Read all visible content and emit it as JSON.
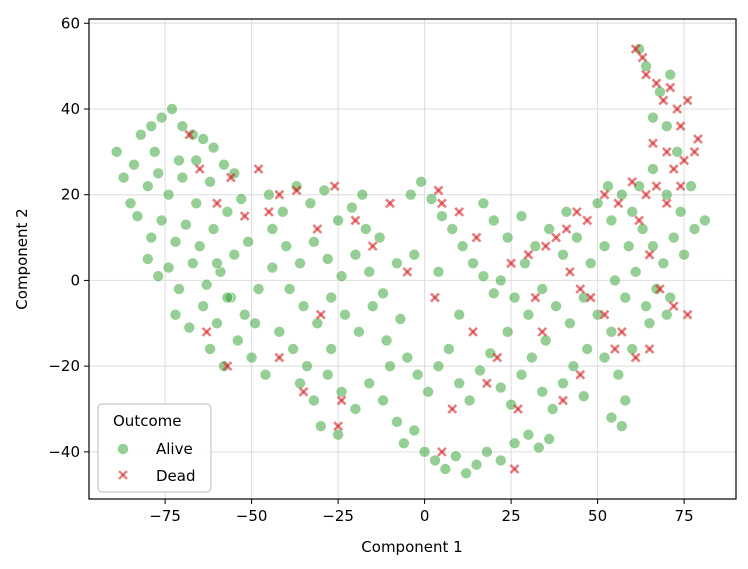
{
  "chart_data": {
    "type": "scatter",
    "title": "",
    "xlabel": "Component 1",
    "ylabel": "Component 2",
    "xlim": [
      -97,
      90
    ],
    "ylim": [
      -51,
      61
    ],
    "xticks": [
      "−75",
      "−50",
      "−25",
      "0",
      "25",
      "50",
      "75"
    ],
    "xtick_values": [
      -75,
      -50,
      -25,
      0,
      25,
      50,
      75
    ],
    "yticks": [
      "−40",
      "−20",
      "0",
      "20",
      "40",
      "60"
    ],
    "ytick_values": [
      -40,
      -20,
      0,
      20,
      40,
      60
    ],
    "grid": true,
    "legend": {
      "title": "Outcome",
      "placement": "lower-left",
      "entries": [
        {
          "label": "Alive",
          "marker": "circle",
          "color": "#2ca02c"
        },
        {
          "label": "Dead",
          "marker": "x",
          "color": "#d62728"
        }
      ]
    },
    "series": [
      {
        "name": "Alive",
        "color": "#2ca02c",
        "marker": "circle",
        "points": [
          [
            -89,
            30
          ],
          [
            -82,
            34
          ],
          [
            -79,
            36
          ],
          [
            -76,
            38
          ],
          [
            -73,
            40
          ],
          [
            -70,
            36
          ],
          [
            -67,
            34
          ],
          [
            -64,
            33
          ],
          [
            -61,
            31
          ],
          [
            -84,
            27
          ],
          [
            -80,
            22
          ],
          [
            -77,
            25
          ],
          [
            -74,
            20
          ],
          [
            -70,
            24
          ],
          [
            -66,
            28
          ],
          [
            -62,
            23
          ],
          [
            -58,
            27
          ],
          [
            -55,
            25
          ],
          [
            -83,
            15
          ],
          [
            -79,
            10
          ],
          [
            -76,
            14
          ],
          [
            -72,
            9
          ],
          [
            -69,
            13
          ],
          [
            -65,
            8
          ],
          [
            -61,
            12
          ],
          [
            -57,
            16
          ],
          [
            -53,
            19
          ],
          [
            -80,
            5
          ],
          [
            -77,
            1
          ],
          [
            -74,
            3
          ],
          [
            -71,
            -2
          ],
          [
            -67,
            4
          ],
          [
            -63,
            -1
          ],
          [
            -59,
            2
          ],
          [
            -55,
            6
          ],
          [
            -51,
            9
          ],
          [
            -72,
            -8
          ],
          [
            -68,
            -11
          ],
          [
            -64,
            -6
          ],
          [
            -60,
            -10
          ],
          [
            -56,
            -4
          ],
          [
            -52,
            -8
          ],
          [
            -48,
            -2
          ],
          [
            -44,
            3
          ],
          [
            -62,
            -16
          ],
          [
            -58,
            -20
          ],
          [
            -54,
            -14
          ],
          [
            -50,
            -18
          ],
          [
            -46,
            -22
          ],
          [
            -42,
            -12
          ],
          [
            -38,
            -16
          ],
          [
            -34,
            -20
          ],
          [
            -45,
            20
          ],
          [
            -41,
            16
          ],
          [
            -37,
            22
          ],
          [
            -33,
            18
          ],
          [
            -29,
            21
          ],
          [
            -25,
            14
          ],
          [
            -21,
            17
          ],
          [
            -17,
            12
          ],
          [
            -13,
            10
          ],
          [
            -40,
            8
          ],
          [
            -36,
            4
          ],
          [
            -32,
            9
          ],
          [
            -28,
            5
          ],
          [
            -24,
            1
          ],
          [
            -20,
            6
          ],
          [
            -16,
            2
          ],
          [
            -12,
            -3
          ],
          [
            -8,
            4
          ],
          [
            -35,
            -6
          ],
          [
            -31,
            -10
          ],
          [
            -27,
            -4
          ],
          [
            -23,
            -8
          ],
          [
            -19,
            -12
          ],
          [
            -15,
            -6
          ],
          [
            -11,
            -14
          ],
          [
            -7,
            -9
          ],
          [
            -36,
            -24
          ],
          [
            -32,
            -28
          ],
          [
            -28,
            -22
          ],
          [
            -24,
            -26
          ],
          [
            -20,
            -30
          ],
          [
            -16,
            -24
          ],
          [
            -12,
            -28
          ],
          [
            -8,
            -33
          ],
          [
            -30,
            -34
          ],
          [
            -25,
            -36
          ],
          [
            -6,
            -38
          ],
          [
            -3,
            -35
          ],
          [
            0,
            -40
          ],
          [
            3,
            -42
          ],
          [
            6,
            -44
          ],
          [
            9,
            -41
          ],
          [
            12,
            -45
          ],
          [
            15,
            -43
          ],
          [
            18,
            -40
          ],
          [
            22,
            -42
          ],
          [
            26,
            -38
          ],
          [
            30,
            -36
          ],
          [
            33,
            -39
          ],
          [
            36,
            -37
          ],
          [
            -4,
            20
          ],
          [
            -1,
            23
          ],
          [
            2,
            19
          ],
          [
            5,
            15
          ],
          [
            8,
            12
          ],
          [
            11,
            8
          ],
          [
            14,
            4
          ],
          [
            17,
            1
          ],
          [
            20,
            -3
          ],
          [
            -5,
            -18
          ],
          [
            -2,
            -22
          ],
          [
            1,
            -26
          ],
          [
            4,
            -20
          ],
          [
            7,
            -16
          ],
          [
            10,
            -24
          ],
          [
            13,
            -28
          ],
          [
            16,
            -21
          ],
          [
            19,
            -17
          ],
          [
            22,
            -25
          ],
          [
            25,
            -29
          ],
          [
            28,
            -22
          ],
          [
            31,
            -18
          ],
          [
            34,
            -26
          ],
          [
            37,
            -30
          ],
          [
            40,
            -24
          ],
          [
            43,
            -20
          ],
          [
            46,
            -27
          ],
          [
            20,
            14
          ],
          [
            24,
            10
          ],
          [
            28,
            15
          ],
          [
            32,
            8
          ],
          [
            36,
            12
          ],
          [
            40,
            6
          ],
          [
            44,
            10
          ],
          [
            48,
            4
          ],
          [
            52,
            8
          ],
          [
            22,
            0
          ],
          [
            26,
            -4
          ],
          [
            30,
            -8
          ],
          [
            34,
            -2
          ],
          [
            38,
            -6
          ],
          [
            42,
            -10
          ],
          [
            46,
            -4
          ],
          [
            50,
            -8
          ],
          [
            54,
            -12
          ],
          [
            50,
            18
          ],
          [
            54,
            14
          ],
          [
            57,
            20
          ],
          [
            60,
            16
          ],
          [
            63,
            12
          ],
          [
            66,
            8
          ],
          [
            69,
            4
          ],
          [
            72,
            10
          ],
          [
            75,
            6
          ],
          [
            55,
            0
          ],
          [
            58,
            -4
          ],
          [
            61,
            2
          ],
          [
            64,
            -6
          ],
          [
            67,
            -2
          ],
          [
            70,
            -8
          ],
          [
            52,
            -18
          ],
          [
            56,
            -22
          ],
          [
            60,
            -16
          ],
          [
            62,
            22
          ],
          [
            66,
            26
          ],
          [
            70,
            20
          ],
          [
            74,
            16
          ],
          [
            78,
            12
          ],
          [
            81,
            14
          ],
          [
            77,
            22
          ],
          [
            73,
            30
          ],
          [
            70,
            36
          ],
          [
            66,
            38
          ],
          [
            68,
            44
          ],
          [
            71,
            48
          ],
          [
            64,
            50
          ],
          [
            62,
            54
          ],
          [
            58,
            -28
          ],
          [
            54,
            -32
          ],
          [
            57,
            -34
          ],
          [
            -85,
            18
          ],
          [
            -87,
            24
          ],
          [
            -78,
            30
          ],
          [
            -71,
            28
          ],
          [
            -66,
            18
          ],
          [
            -60,
            4
          ],
          [
            -57,
            -4
          ],
          [
            -49,
            -10
          ],
          [
            -44,
            12
          ],
          [
            -39,
            -2
          ],
          [
            -27,
            -16
          ],
          [
            -18,
            20
          ],
          [
            -10,
            -20
          ],
          [
            -3,
            6
          ],
          [
            4,
            2
          ],
          [
            10,
            -8
          ],
          [
            17,
            18
          ],
          [
            24,
            -12
          ],
          [
            29,
            4
          ],
          [
            35,
            -14
          ],
          [
            41,
            16
          ],
          [
            47,
            -16
          ],
          [
            53,
            22
          ],
          [
            59,
            8
          ],
          [
            65,
            -10
          ],
          [
            71,
            -4
          ]
        ]
      },
      {
        "name": "Dead",
        "color": "#d62728",
        "marker": "x",
        "points": [
          [
            61,
            54
          ],
          [
            63,
            52
          ],
          [
            64,
            48
          ],
          [
            67,
            46
          ],
          [
            69,
            42
          ],
          [
            71,
            45
          ],
          [
            73,
            40
          ],
          [
            74,
            36
          ],
          [
            76,
            42
          ],
          [
            66,
            32
          ],
          [
            70,
            30
          ],
          [
            72,
            26
          ],
          [
            75,
            28
          ],
          [
            78,
            30
          ],
          [
            79,
            33
          ],
          [
            74,
            22
          ],
          [
            70,
            18
          ],
          [
            67,
            22
          ],
          [
            64,
            20
          ],
          [
            60,
            23
          ],
          [
            56,
            18
          ],
          [
            52,
            20
          ],
          [
            47,
            14
          ],
          [
            44,
            16
          ],
          [
            41,
            12
          ],
          [
            38,
            10
          ],
          [
            62,
            14
          ],
          [
            65,
            6
          ],
          [
            68,
            -2
          ],
          [
            72,
            -6
          ],
          [
            76,
            -8
          ],
          [
            65,
            -16
          ],
          [
            61,
            -18
          ],
          [
            57,
            -12
          ],
          [
            52,
            -8
          ],
          [
            48,
            -4
          ],
          [
            45,
            -2
          ],
          [
            42,
            2
          ],
          [
            35,
            8
          ],
          [
            30,
            6
          ],
          [
            25,
            4
          ],
          [
            15,
            10
          ],
          [
            10,
            16
          ],
          [
            5,
            18
          ],
          [
            4,
            21
          ],
          [
            -10,
            18
          ],
          [
            -20,
            14
          ],
          [
            -31,
            12
          ],
          [
            -37,
            21
          ],
          [
            -45,
            16
          ],
          [
            -52,
            15
          ],
          [
            -60,
            18
          ],
          [
            -65,
            26
          ],
          [
            -68,
            34
          ],
          [
            -56,
            24
          ],
          [
            -48,
            26
          ],
          [
            -42,
            20
          ],
          [
            -26,
            22
          ],
          [
            -15,
            8
          ],
          [
            -5,
            2
          ],
          [
            3,
            -4
          ],
          [
            14,
            -12
          ],
          [
            21,
            -18
          ],
          [
            18,
            -24
          ],
          [
            27,
            -30
          ],
          [
            34,
            -12
          ],
          [
            40,
            -28
          ],
          [
            45,
            -22
          ],
          [
            55,
            -16
          ],
          [
            26,
            -44
          ],
          [
            -24,
            -28
          ],
          [
            -42,
            -18
          ],
          [
            -30,
            -8
          ],
          [
            -25,
            -34
          ],
          [
            -63,
            -12
          ],
          [
            -57,
            -20
          ],
          [
            -35,
            -26
          ],
          [
            8,
            -30
          ],
          [
            32,
            -4
          ],
          [
            5,
            -40
          ]
        ]
      }
    ]
  }
}
